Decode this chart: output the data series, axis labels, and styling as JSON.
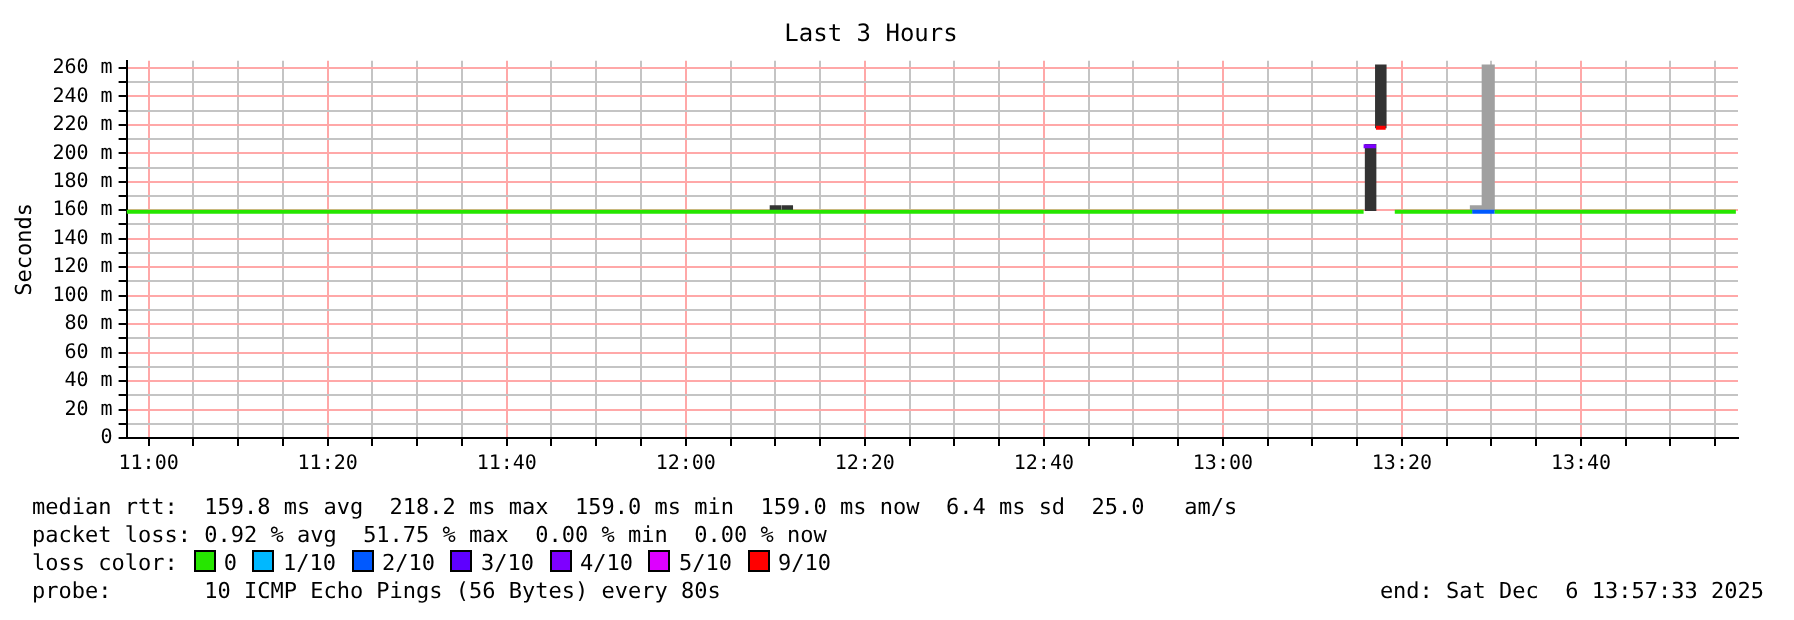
{
  "chart_data": {
    "type": "line",
    "title": "Last 3 Hours",
    "ylabel": "Seconds",
    "legend_title": "loss color:",
    "legend": "bottom",
    "grid": true,
    "xlim": [
      10.959,
      13.959
    ],
    "ylim": [
      0,
      265
    ],
    "xticks": [
      {
        "value": 11,
        "label": "11:00"
      },
      {
        "value": 11.0833,
        "label": null
      },
      {
        "value": 11.1667,
        "label": null
      },
      {
        "value": 11.25,
        "label": null
      },
      {
        "value": 11.3333,
        "label": "11:20"
      },
      {
        "value": 11.4167,
        "label": null
      },
      {
        "value": 11.5,
        "label": null
      },
      {
        "value": 11.5833,
        "label": null
      },
      {
        "value": 11.6667,
        "label": "11:40"
      },
      {
        "value": 11.75,
        "label": null
      },
      {
        "value": 11.8333,
        "label": null
      },
      {
        "value": 11.9167,
        "label": null
      },
      {
        "value": 12,
        "label": "12:00"
      },
      {
        "value": 12.0833,
        "label": null
      },
      {
        "value": 12.1667,
        "label": null
      },
      {
        "value": 12.25,
        "label": null
      },
      {
        "value": 12.3333,
        "label": "12:20"
      },
      {
        "value": 12.4167,
        "label": null
      },
      {
        "value": 12.5,
        "label": null
      },
      {
        "value": 12.5833,
        "label": null
      },
      {
        "value": 12.6667,
        "label": "12:40"
      },
      {
        "value": 12.75,
        "label": null
      },
      {
        "value": 12.8333,
        "label": null
      },
      {
        "value": 12.9167,
        "label": null
      },
      {
        "value": 13,
        "label": "13:00"
      },
      {
        "value": 13.0833,
        "label": null
      },
      {
        "value": 13.1667,
        "label": null
      },
      {
        "value": 13.25,
        "label": null
      },
      {
        "value": 13.3333,
        "label": "13:20"
      },
      {
        "value": 13.4167,
        "label": null
      },
      {
        "value": 13.5,
        "label": null
      },
      {
        "value": 13.5833,
        "label": null
      },
      {
        "value": 13.6667,
        "label": "13:40"
      },
      {
        "value": 13.75,
        "label": null
      },
      {
        "value": 13.8333,
        "label": null
      },
      {
        "value": 13.9167,
        "label": null
      }
    ],
    "yticks": [
      0,
      {
        "value": 10,
        "label": null
      },
      {
        "value": 20,
        "label": "20 m"
      },
      {
        "value": 30,
        "label": null
      },
      {
        "value": 40,
        "label": "40 m"
      },
      {
        "value": 50,
        "label": null
      },
      {
        "value": 60,
        "label": "60 m"
      },
      {
        "value": 70,
        "label": null
      },
      {
        "value": 80,
        "label": "80 m"
      },
      {
        "value": 90,
        "label": null
      },
      {
        "value": 100,
        "label": "100 m"
      },
      {
        "value": 110,
        "label": null
      },
      {
        "value": 120,
        "label": "120 m"
      },
      {
        "value": 130,
        "label": null
      },
      {
        "value": 140,
        "label": "140 m"
      },
      {
        "value": 150,
        "label": null
      },
      {
        "value": 160,
        "label": "160 m"
      },
      {
        "value": 170,
        "label": null
      },
      {
        "value": 180,
        "label": "180 m"
      },
      {
        "value": 190,
        "label": null
      },
      {
        "value": 200,
        "label": "200 m"
      },
      {
        "value": 210,
        "label": null
      },
      {
        "value": 220,
        "label": "220 m"
      },
      {
        "value": 230,
        "label": null
      },
      {
        "value": 240,
        "label": "240 m"
      },
      {
        "value": 250,
        "label": null
      },
      {
        "value": 260,
        "label": "260 m"
      }
    ],
    "series": [
      {
        "type": "bar",
        "color": "#333333",
        "x": [
          12.167,
          12.189,
          13.275,
          13.294
        ],
        "base": [
          160,
          160,
          160,
          218
        ],
        "values": [
          3,
          3,
          46,
          44
        ]
      },
      {
        "type": "bar",
        "color": "#a0a0a0",
        "x": [
          13.472,
          13.494
        ],
        "base": [
          160,
          160
        ],
        "values": [
          3,
          102
        ]
      },
      {
        "name": "0",
        "color": "#26e600",
        "x": [
          10.959,
          13.262,
          13.263,
          13.32,
          13.464,
          13.465,
          13.506,
          13.955
        ],
        "values": [
          159,
          159,
          null,
          159,
          159,
          null,
          159,
          159
        ]
      },
      {
        "name": "1/10",
        "color": "#00b8ff"
      },
      {
        "name": "2/10",
        "color": "#0059ff",
        "x": [
          13.464,
          13.506
        ],
        "values": [
          159,
          159
        ]
      },
      {
        "name": "3/10",
        "color": "#5e00ff"
      },
      {
        "name": "4/10",
        "color": "#7e00ff",
        "x": [
          13.262,
          13.285
        ],
        "values": [
          205,
          205
        ]
      },
      {
        "name": "5/10",
        "color": "#dd00ff"
      },
      {
        "name": "9/10",
        "color": "#ff0000",
        "x": [
          13.285,
          13.303
        ],
        "values": [
          218,
          218
        ]
      }
    ],
    "annotations": [
      "median rtt:  159.8 ms avg  218.2 ms max  159.0 ms min  159.0 ms now  6.4 ms sd  25.0   am/s",
      "packet loss: 0.92 % avg  51.75 % max  0.00 % min  0.00 % now",
      "probe:       10 ICMP Echo Pings (56 Bytes) every 80s",
      "end: Sat Dec  6 13:57:33 2025"
    ]
  }
}
